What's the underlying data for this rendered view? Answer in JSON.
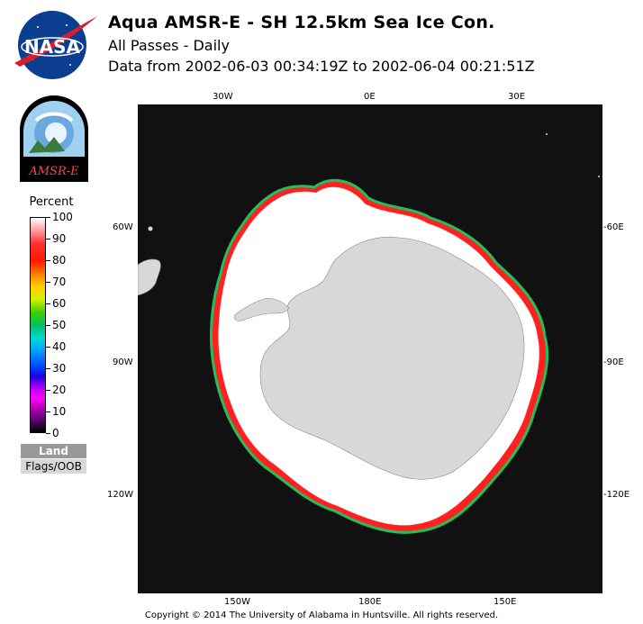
{
  "header": {
    "title": "Aqua AMSR-E - SH 12.5km Sea Ice Con.",
    "subtitle1": "All Passes - Daily",
    "subtitle2": "Data from 2002-06-03 00:34:19Z to 2002-06-04 00:21:51Z"
  },
  "logos": {
    "nasa_text": "NASA",
    "amsre_text": "AMSR-E"
  },
  "legend": {
    "title": "Percent",
    "ticks": [
      "100",
      "90",
      "80",
      "70",
      "60",
      "50",
      "40",
      "30",
      "20",
      "10",
      "0"
    ],
    "land_label": "Land",
    "flags_label": "Flags/OOB"
  },
  "map": {
    "top_labels": [
      "30W",
      "0E",
      "30E"
    ],
    "bottom_labels": [
      "150W",
      "180E",
      "150E"
    ],
    "left_labels": [
      "60W",
      "90W",
      "120W"
    ],
    "right_labels": [
      "-60E",
      "-90E",
      "-120E"
    ],
    "colors": {
      "ocean": "#111111",
      "land": "#d8d8d8",
      "ice": "#ffffff"
    }
  },
  "footer": {
    "copyright": "Copyright © 2014 The University of Alabama in Huntsville. All rights reserved."
  }
}
